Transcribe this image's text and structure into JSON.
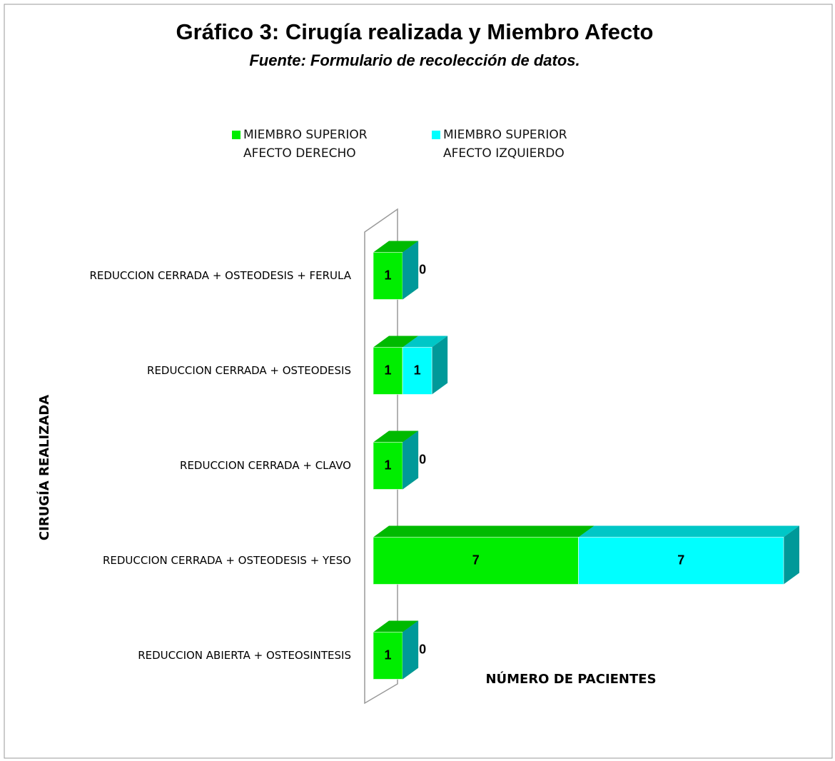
{
  "chart_data": {
    "type": "bar3d_stacked_horizontal",
    "title": "Gráfico 3: Cirugía realizada y Miembro Afecto",
    "subtitle": "Fuente: Formulario de recolección de datos.",
    "y_label": "CIRUGÍA REALIZADA",
    "x_label": "NÚMERO DE PACIENTES",
    "categories": [
      "REDUCCION CERRADA + OSTEODESIS + FERULA",
      "REDUCCION CERRADA + OSTEODESIS",
      "REDUCCION CERRADA + CLAVO",
      "REDUCCION CERRADA + OSTEODESIS + YESO",
      "REDUCCION ABIERTA + OSTEOSINTESIS"
    ],
    "series": [
      {
        "name": "MIEMBRO SUPERIOR AFECTO DERECHO",
        "color": "#00ee00",
        "values": [
          1,
          1,
          1,
          7,
          1
        ]
      },
      {
        "name": "MIEMBRO SUPERIOR AFECTO IZQUIERDO",
        "color": "#00ffff",
        "values": [
          0,
          1,
          0,
          7,
          0
        ]
      }
    ],
    "xlim": [
      0,
      14
    ],
    "legend": "top"
  }
}
